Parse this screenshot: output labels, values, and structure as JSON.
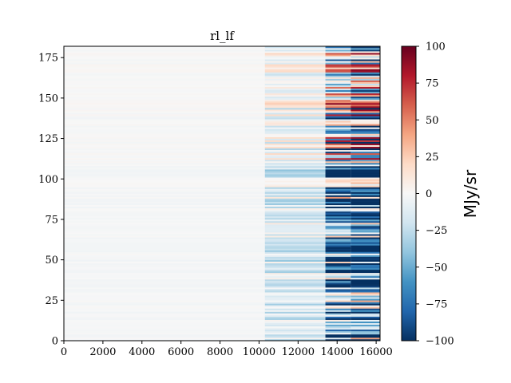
{
  "chart_data": {
    "type": "heatmap",
    "title": "rl_lf",
    "xlabel": "",
    "ylabel": "",
    "xlim": [
      0,
      16200
    ],
    "ylim": [
      0,
      182
    ],
    "x_ticks": [
      0,
      2000,
      4000,
      6000,
      8000,
      10000,
      12000,
      14000,
      16000
    ],
    "x_tick_labels": [
      "0",
      "2000",
      "4000",
      "6000",
      "8000",
      "10000",
      "12000",
      "14000",
      "16000"
    ],
    "y_ticks": [
      0,
      25,
      50,
      75,
      100,
      125,
      150,
      175
    ],
    "y_tick_labels": [
      "0",
      "25",
      "50",
      "75",
      "100",
      "125",
      "150",
      "175"
    ],
    "colorbar": {
      "label": "MJy/sr",
      "colormap": "RdBu_r",
      "vmin": -100,
      "vmax": 100,
      "ticks": [
        100,
        75,
        50,
        25,
        0,
        -25,
        -50,
        -75,
        -100
      ],
      "tick_labels": [
        "100",
        "75",
        "50",
        "25",
        "0",
        "−25",
        "−50",
        "−75",
        "−100"
      ]
    },
    "column_regions": [
      {
        "x_start": 0,
        "x_end": 10300,
        "description_level": "near zero"
      },
      {
        "x_start": 10300,
        "x_end": 13400,
        "description_level": "moderate stripes"
      },
      {
        "x_start": 13400,
        "x_end": 14700,
        "description_level": "strong stripes"
      },
      {
        "x_start": 14700,
        "x_end": 16200,
        "description_level": "strongest stripes"
      }
    ],
    "grid": false
  }
}
